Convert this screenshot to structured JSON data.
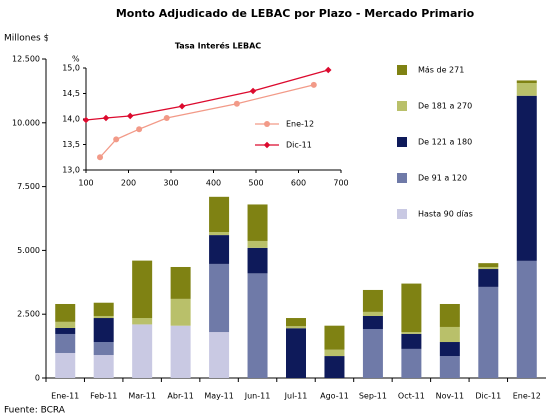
{
  "chart_data": [
    {
      "type": "bar",
      "stacked": true,
      "title": "Monto Adjudicado de LEBAC por Plazo - Mercado Primario",
      "ylabel": "Millones $",
      "source": "Fuente: BCRA",
      "categories": [
        "Ene-11",
        "Feb-11",
        "Mar-11",
        "Abr-11",
        "May-11",
        "Jun-11",
        "Jul-11",
        "Ago-11",
        "Sep-11",
        "Oct-11",
        "Nov-11",
        "Dic-11",
        "Ene-12"
      ],
      "series": [
        {
          "name": "Hasta 90 días",
          "color": "#c9c9e3",
          "values": [
            980,
            900,
            2100,
            2050,
            1800,
            0,
            0,
            0,
            0,
            0,
            0,
            0,
            0
          ]
        },
        {
          "name": "De 91 a 120",
          "color": "#6f7aa8",
          "values": [
            745,
            510,
            0,
            0,
            2670,
            4100,
            0,
            0,
            1920,
            1140,
            860,
            3570,
            4590
          ]
        },
        {
          "name": "De 121 a 180",
          "color": "#0e1a5a",
          "values": [
            235,
            940,
            0,
            0,
            1130,
            1000,
            1950,
            860,
            510,
            590,
            550,
            700,
            6470
          ]
        },
        {
          "name": "De 181 a 270",
          "color": "#b9c06a",
          "values": [
            240,
            80,
            250,
            1050,
            120,
            270,
            80,
            250,
            160,
            70,
            590,
            80,
            500
          ]
        },
        {
          "name": "Más de 271",
          "color": "#7f8213",
          "values": [
            700,
            520,
            2250,
            1250,
            1380,
            1430,
            320,
            940,
            860,
            1900,
            900,
            150,
            100
          ]
        }
      ],
      "ylim": [
        0,
        12500
      ],
      "yticks": [
        0,
        {
          "value": 2500,
          "label": "2.500"
        },
        {
          "value": 5000,
          "label": "5.000"
        },
        {
          "value": 7500,
          "label": "7.500"
        },
        {
          "value": 10000,
          "label": "10.000"
        },
        {
          "value": 12500,
          "label": "12.500"
        }
      ],
      "legend": "right"
    },
    {
      "type": "line",
      "title": "Tasa Interés LEBAC",
      "ylabel": "%",
      "series": [
        {
          "name": "Ene-12",
          "color": "#f29a88",
          "x": [
            133,
            171,
            225,
            290,
            455,
            636
          ],
          "values": [
            13.25,
            13.6,
            13.8,
            14.02,
            14.3,
            14.67
          ]
        },
        {
          "name": "Dic-11",
          "color": "#dc0a2e",
          "x": [
            100,
            147,
            204,
            326,
            493,
            670
          ],
          "values": [
            13.98,
            14.02,
            14.06,
            14.25,
            14.55,
            14.96
          ]
        }
      ],
      "xlim": [
        100,
        700
      ],
      "xticks": [
        100,
        200,
        300,
        400,
        500,
        600,
        700
      ],
      "ylim": [
        13,
        15
      ],
      "yticks": [
        {
          "value": 13,
          "label": "13,0"
        },
        {
          "value": 13.5,
          "label": "13,5"
        },
        {
          "value": 14,
          "label": "14,0"
        },
        {
          "value": 14.5,
          "label": "14,5"
        },
        {
          "value": 15,
          "label": "15,0"
        }
      ],
      "legend": "lower right"
    }
  ]
}
